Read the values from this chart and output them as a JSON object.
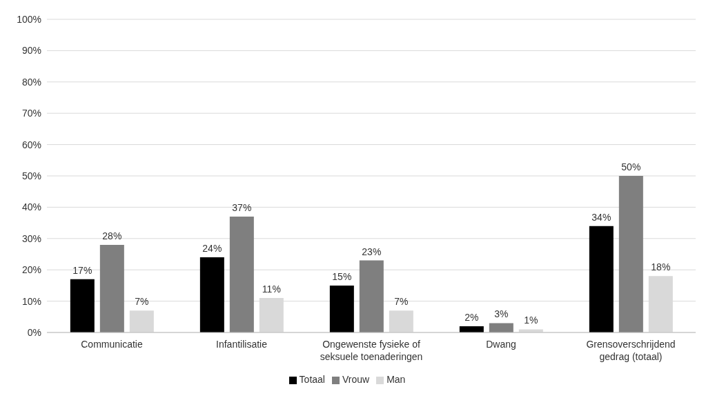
{
  "chart_data": {
    "type": "bar",
    "categories": [
      "Communicatie",
      "Infantilisatie",
      "Ongewenste fysieke of seksuele toenaderingen",
      "Dwang",
      "Grensoverschrijdend gedrag (totaal)"
    ],
    "series": [
      {
        "name": "Totaal",
        "color": "#000000",
        "values": [
          17,
          24,
          15,
          2,
          34
        ],
        "value_labels": [
          "17%",
          "24%",
          "15%",
          "2%",
          "34%"
        ]
      },
      {
        "name": "Vrouw",
        "color": "#7f7f7f",
        "values": [
          28,
          37,
          23,
          3,
          50
        ],
        "value_labels": [
          "28%",
          "37%",
          "23%",
          "3%",
          "50%"
        ]
      },
      {
        "name": "Man",
        "color": "#d9d9d9",
        "values": [
          7,
          11,
          7,
          1,
          18
        ],
        "value_labels": [
          "7%",
          "11%",
          "7%",
          "1%",
          "18%"
        ]
      }
    ],
    "ylim": [
      0,
      100
    ],
    "yticks": [
      {
        "value": 0,
        "label": "0%"
      },
      {
        "value": 10,
        "label": "10%"
      },
      {
        "value": 20,
        "label": "20%"
      },
      {
        "value": 30,
        "label": "30%"
      },
      {
        "value": 40,
        "label": "40%"
      },
      {
        "value": 50,
        "label": "50%"
      },
      {
        "value": 60,
        "label": "60%"
      },
      {
        "value": 70,
        "label": "70%"
      },
      {
        "value": 80,
        "label": "80%"
      },
      {
        "value": 90,
        "label": "90%"
      },
      {
        "value": 100,
        "label": "100%"
      }
    ],
    "grid": "y",
    "legend": "bottom"
  }
}
